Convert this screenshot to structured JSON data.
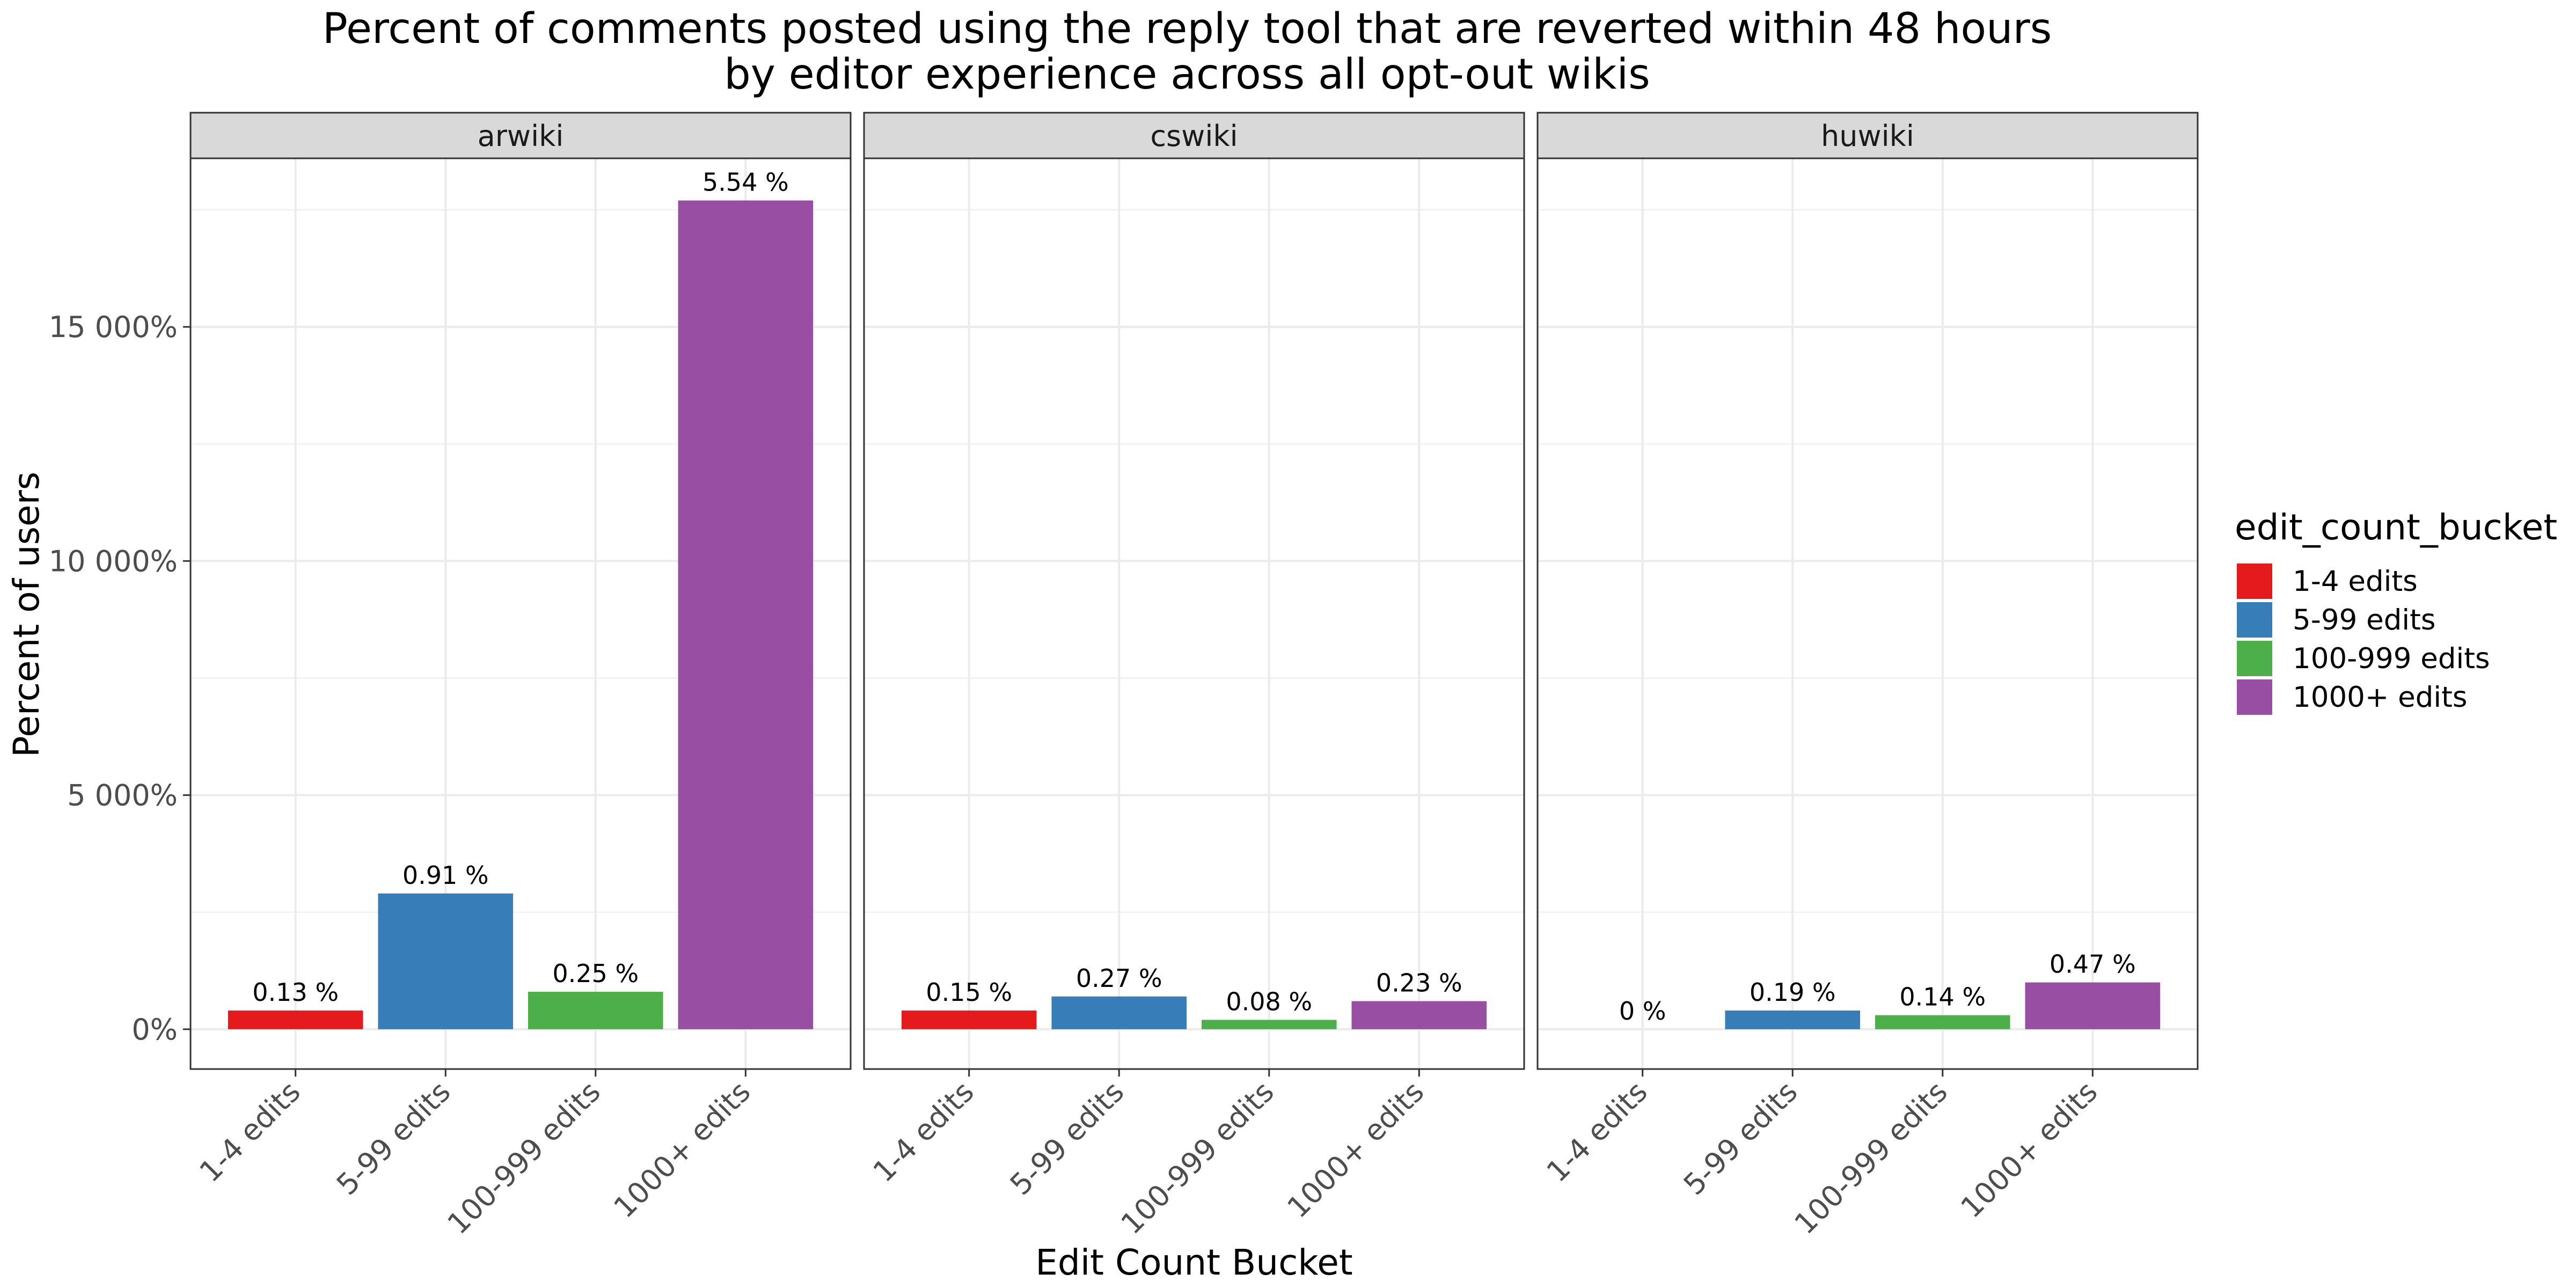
{
  "chart_data": {
    "type": "bar",
    "title": "Percent of comments posted using the reply tool that are reverted within 48 hours",
    "subtitle": "by editor experience across all opt-out wikis",
    "xlabel": "Edit Count Bucket",
    "ylabel": "Percent of users",
    "ylim": [
      -850,
      18600
    ],
    "y_ticks": [
      {
        "value": 0,
        "label": "0%"
      },
      {
        "value": 5000,
        "label": "5 000%"
      },
      {
        "value": 10000,
        "label": "10 000%"
      },
      {
        "value": 15000,
        "label": "15 000%"
      }
    ],
    "grid": true,
    "categories": [
      "1-4 edits",
      "5-99 edits",
      "100-999 edits",
      "1000+ edits"
    ],
    "colors": {
      "1-4 edits": "#e41a1c",
      "5-99 edits": "#377eb8",
      "100-999 edits": "#4daf4a",
      "1000+ edits": "#984ea3"
    },
    "facets": [
      {
        "name": "arwiki",
        "values": [
          400,
          2900,
          800,
          17700
        ],
        "labels": [
          "0.13 %",
          "0.91 %",
          "0.25 %",
          "5.54 %"
        ]
      },
      {
        "name": "cswiki",
        "values": [
          400,
          700,
          200,
          600
        ],
        "labels": [
          "0.15 %",
          "0.27 %",
          "0.08 %",
          "0.23 %"
        ]
      },
      {
        "name": "huwiki",
        "values": [
          0,
          400,
          300,
          1000
        ],
        "labels": [
          "0 %",
          "0.19 %",
          "0.14 %",
          "0.47 %"
        ]
      }
    ],
    "legend": {
      "title": "edit_count_bucket",
      "position": "right",
      "items": [
        "1-4 edits",
        "5-99 edits",
        "100-999 edits",
        "1000+ edits"
      ]
    }
  }
}
